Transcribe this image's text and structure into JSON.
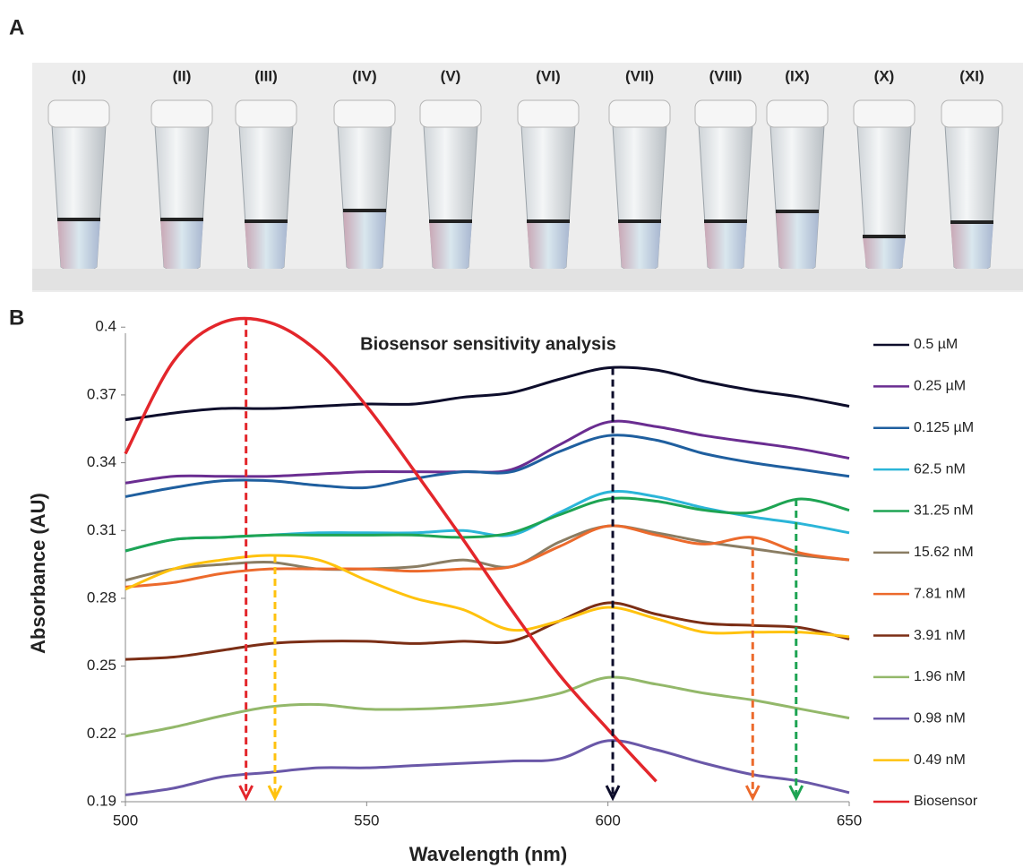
{
  "figure": {
    "panel_a_label": "A",
    "panel_b_label": "B",
    "tubes": [
      "(I)",
      "(II)",
      "(III)",
      "(IV)",
      "(V)",
      "(VI)",
      "(VII)",
      "(VIII)",
      "(IX)",
      "(X)",
      "(XI)"
    ]
  },
  "chart_data": {
    "type": "line",
    "title": "Biosensor sensitivity analysis",
    "x_label": "Wavelength (nm)",
    "y_label": "Absorbance (AU)",
    "x": [
      500,
      510,
      520,
      530,
      540,
      550,
      560,
      570,
      580,
      590,
      600,
      610,
      620,
      630,
      640,
      650
    ],
    "xlim": [
      500,
      650
    ],
    "xticks": [
      500,
      550,
      600,
      650
    ],
    "ylim": [
      0.19,
      0.41
    ],
    "yticks": [
      0.19,
      0.22,
      0.25,
      0.28,
      0.31,
      0.34,
      0.37,
      0.4
    ],
    "series": [
      {
        "name": "0.5 µM",
        "color": "#0d0d2b",
        "values": [
          0.359,
          0.362,
          0.364,
          0.364,
          0.365,
          0.366,
          0.366,
          0.369,
          0.371,
          0.377,
          0.382,
          0.381,
          0.376,
          0.372,
          0.369,
          0.365
        ]
      },
      {
        "name": "0.25 µM",
        "color": "#6a2d91",
        "values": [
          0.331,
          0.334,
          0.334,
          0.334,
          0.335,
          0.336,
          0.336,
          0.336,
          0.337,
          0.348,
          0.358,
          0.356,
          0.352,
          0.349,
          0.346,
          0.342
        ]
      },
      {
        "name": "0.125 µM",
        "color": "#1f5f9f",
        "values": [
          0.325,
          0.329,
          0.332,
          0.332,
          0.33,
          0.329,
          0.333,
          0.336,
          0.336,
          0.345,
          0.352,
          0.35,
          0.344,
          0.34,
          0.337,
          0.334
        ]
      },
      {
        "name": "62.5 nM",
        "color": "#2bb5d8",
        "values": [
          0.301,
          0.306,
          0.307,
          0.308,
          0.309,
          0.309,
          0.309,
          0.31,
          0.308,
          0.318,
          0.327,
          0.325,
          0.32,
          0.316,
          0.313,
          0.309
        ]
      },
      {
        "name": "31.25 nM",
        "color": "#1ea453",
        "values": [
          0.301,
          0.306,
          0.307,
          0.308,
          0.308,
          0.308,
          0.308,
          0.307,
          0.309,
          0.317,
          0.324,
          0.323,
          0.319,
          0.318,
          0.324,
          0.319
        ]
      },
      {
        "name": "15.62 nM",
        "color": "#8a7d63",
        "values": [
          0.288,
          0.293,
          0.295,
          0.296,
          0.293,
          0.293,
          0.294,
          0.297,
          0.294,
          0.305,
          0.312,
          0.309,
          0.305,
          0.302,
          0.299,
          0.297
        ]
      },
      {
        "name": "7.81 nM",
        "color": "#ec6a2c",
        "values": [
          0.285,
          0.287,
          0.291,
          0.293,
          0.293,
          0.293,
          0.292,
          0.293,
          0.294,
          0.303,
          0.312,
          0.308,
          0.304,
          0.307,
          0.3,
          0.297
        ]
      },
      {
        "name": "3.91 nM",
        "color": "#7b2e15",
        "values": [
          0.253,
          0.254,
          0.257,
          0.26,
          0.261,
          0.261,
          0.26,
          0.261,
          0.261,
          0.27,
          0.278,
          0.273,
          0.269,
          0.268,
          0.267,
          0.262
        ]
      },
      {
        "name": "1.96 nM",
        "color": "#93b86a",
        "values": [
          0.219,
          0.223,
          0.228,
          0.232,
          0.233,
          0.231,
          0.231,
          0.232,
          0.234,
          0.238,
          0.245,
          0.242,
          0.238,
          0.235,
          0.231,
          0.227
        ]
      },
      {
        "name": "0.98 nM",
        "color": "#6a58a8",
        "values": [
          0.193,
          0.196,
          0.201,
          0.203,
          0.205,
          0.205,
          0.206,
          0.207,
          0.208,
          0.209,
          0.217,
          0.213,
          0.207,
          0.202,
          0.199,
          0.194
        ]
      },
      {
        "name": "0.49 nM",
        "color": "#ffc20e",
        "values": [
          0.284,
          0.293,
          0.297,
          0.299,
          0.297,
          0.288,
          0.28,
          0.275,
          0.266,
          0.27,
          0.276,
          0.271,
          0.265,
          0.265,
          0.265,
          0.263
        ]
      },
      {
        "name": "Biosensor",
        "color": "#e3262b",
        "values": [
          0.344,
          0.385,
          0.402,
          0.402,
          0.389,
          0.365,
          0.336,
          0.306,
          0.275,
          0.246,
          0.222,
          0.199,
          null,
          null,
          null,
          null
        ]
      }
    ],
    "arrows": [
      {
        "x": 525,
        "y": 0.404,
        "color": "#e3262b"
      },
      {
        "x": 531,
        "y": 0.299,
        "color": "#ffc20e"
      },
      {
        "x": 601,
        "y": 0.382,
        "color": "#0d0d2b"
      },
      {
        "x": 630,
        "y": 0.307,
        "color": "#ec6a2c"
      },
      {
        "x": 639,
        "y": 0.324,
        "color": "#1ea453"
      }
    ]
  }
}
